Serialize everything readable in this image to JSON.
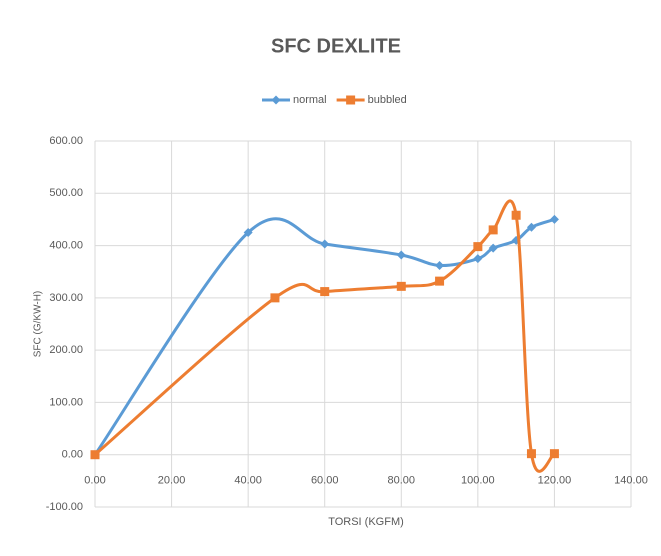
{
  "chart_data": {
    "type": "scatter",
    "title": "SFC DEXLITE",
    "x_label": "TORSI (KGFM)",
    "y_label": "SFC (G/KW-H)",
    "legend": "top",
    "grid": true,
    "smooth": true,
    "xlim": [
      0,
      140
    ],
    "xticks": [
      {
        "value": 0,
        "label": "0.00"
      },
      {
        "value": 20,
        "label": "20.00"
      },
      {
        "value": 40,
        "label": "40.00"
      },
      {
        "value": 60,
        "label": "60.00"
      },
      {
        "value": 80,
        "label": "80.00"
      },
      {
        "value": 100,
        "label": "100.00"
      },
      {
        "value": 120,
        "label": "120.00"
      },
      {
        "value": 140,
        "label": "140.00"
      }
    ],
    "ylim": [
      -100,
      600
    ],
    "yticks": [
      {
        "value": -100,
        "label": "-100.00"
      },
      {
        "value": 0,
        "label": "0.00"
      },
      {
        "value": 100,
        "label": "100.00"
      },
      {
        "value": 200,
        "label": "200.00"
      },
      {
        "value": 300,
        "label": "300.00"
      },
      {
        "value": 400,
        "label": "400.00"
      },
      {
        "value": 500,
        "label": "500.00"
      },
      {
        "value": 600,
        "label": "600.00"
      }
    ],
    "series": [
      {
        "name": "normal",
        "color": "#5b9bd5",
        "marker": "diamond",
        "x": [
          0,
          40,
          60,
          80,
          90,
          100,
          104,
          110,
          114,
          120
        ],
        "values": [
          0,
          425,
          403,
          382,
          362,
          375,
          395,
          410,
          435,
          450
        ]
      },
      {
        "name": "bubbled",
        "color": "#ed7d31",
        "marker": "square",
        "x": [
          0,
          47,
          60,
          80,
          90,
          100,
          104,
          110,
          114,
          120
        ],
        "values": [
          0,
          300,
          312,
          322,
          332,
          398,
          430,
          458,
          2,
          2
        ]
      }
    ]
  }
}
